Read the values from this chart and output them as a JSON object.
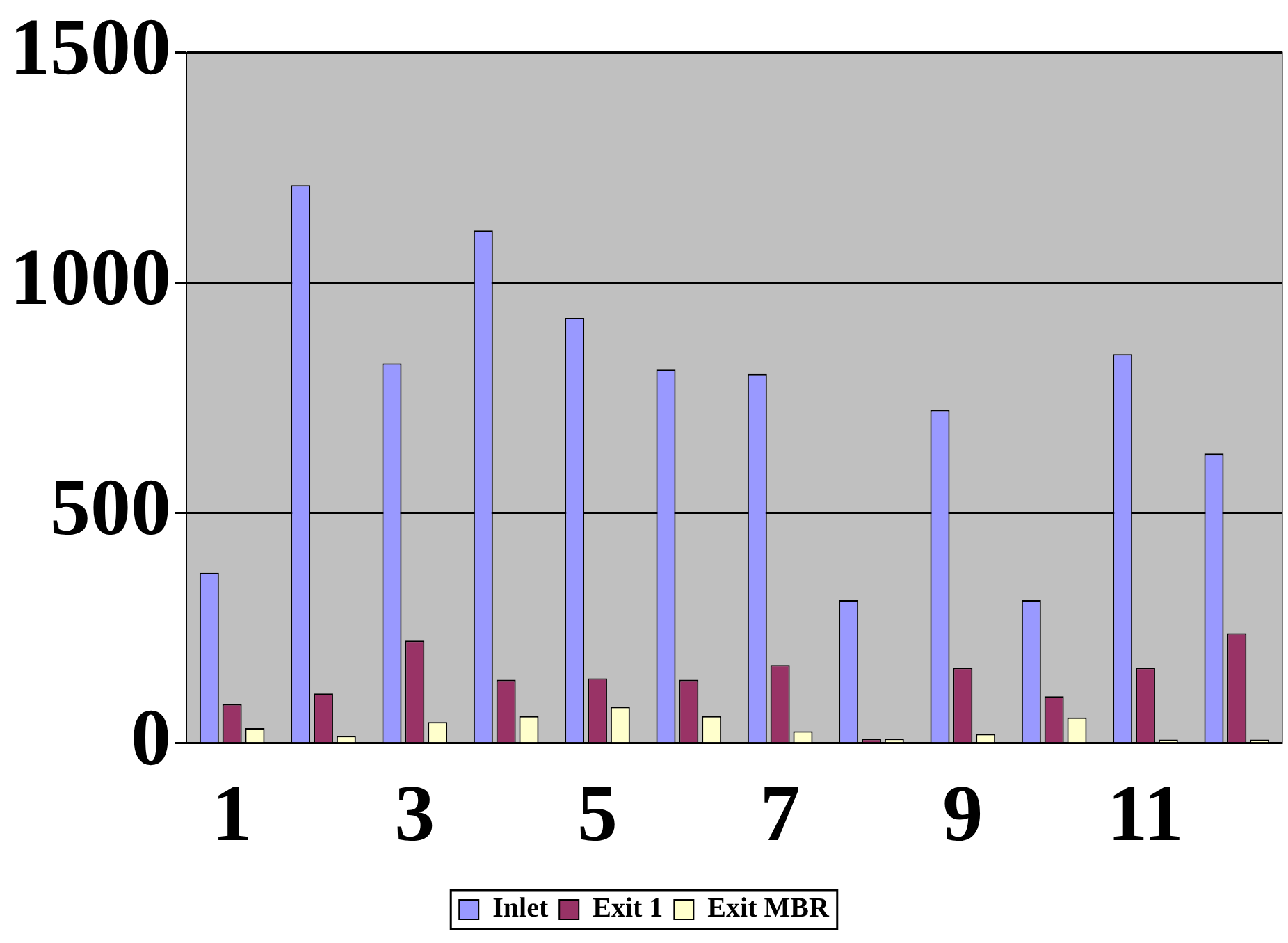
{
  "chart_data": {
    "type": "bar",
    "categories": [
      "1",
      null,
      "3",
      null,
      "5",
      null,
      "7",
      null,
      "9",
      null,
      "11",
      null
    ],
    "series": [
      {
        "name": "Inlet",
        "color": "#9999ff",
        "values": [
          370,
          1212,
          825,
          1114,
          924,
          812,
          802,
          311,
          724,
          311,
          845,
          629
        ]
      },
      {
        "name": "Exit 1",
        "color": "#993366",
        "values": [
          85,
          108,
          223,
          138,
          141,
          138,
          170,
          10,
          164,
          102,
          164,
          239
        ]
      },
      {
        "name": "Exit MBR",
        "color": "#ffffcc",
        "values": [
          33,
          16,
          46,
          59,
          79,
          59,
          26,
          10,
          20,
          56,
          8,
          8
        ]
      }
    ],
    "ylim": [
      0,
      1500
    ],
    "yticks": [
      0,
      500,
      1000,
      1500
    ],
    "grid": "y",
    "legend": "bottom"
  }
}
